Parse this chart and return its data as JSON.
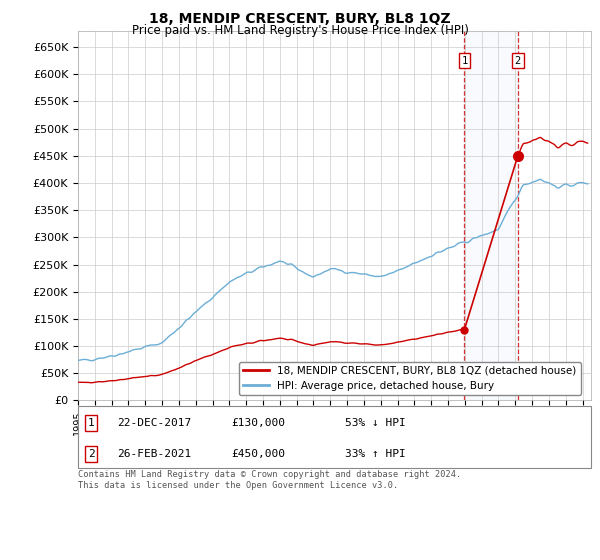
{
  "title": "18, MENDIP CRESCENT, BURY, BL8 1QZ",
  "subtitle": "Price paid vs. HM Land Registry's House Price Index (HPI)",
  "xlim_start": 1995.0,
  "xlim_end": 2025.5,
  "ylim": [
    0,
    680000
  ],
  "yticks": [
    0,
    50000,
    100000,
    150000,
    200000,
    250000,
    300000,
    350000,
    400000,
    450000,
    500000,
    550000,
    600000,
    650000
  ],
  "ytick_labels": [
    "£0",
    "£50K",
    "£100K",
    "£150K",
    "£200K",
    "£250K",
    "£300K",
    "£350K",
    "£400K",
    "£450K",
    "£500K",
    "£550K",
    "£600K",
    "£650K"
  ],
  "hpi_color": "#6baed6",
  "price_color": "#cc0000",
  "transaction1_date": 2017.97,
  "transaction1_price": 130000,
  "transaction2_date": 2021.15,
  "transaction2_price": 450000,
  "legend_line1": "18, MENDIP CRESCENT, BURY, BL8 1QZ (detached house)",
  "legend_line2": "HPI: Average price, detached house, Bury",
  "note1_num": "1",
  "note1_date": "22-DEC-2017",
  "note1_price": "£130,000",
  "note1_hpi": "53% ↓ HPI",
  "note2_num": "2",
  "note2_date": "26-FEB-2021",
  "note2_price": "£450,000",
  "note2_hpi": "33% ↑ HPI",
  "footer": "Contains HM Land Registry data © Crown copyright and database right 2024.\nThis data is licensed under the Open Government Licence v3.0.",
  "background_color": "#ffffff",
  "grid_color": "#cccccc",
  "shade_color": "#ddeeff"
}
